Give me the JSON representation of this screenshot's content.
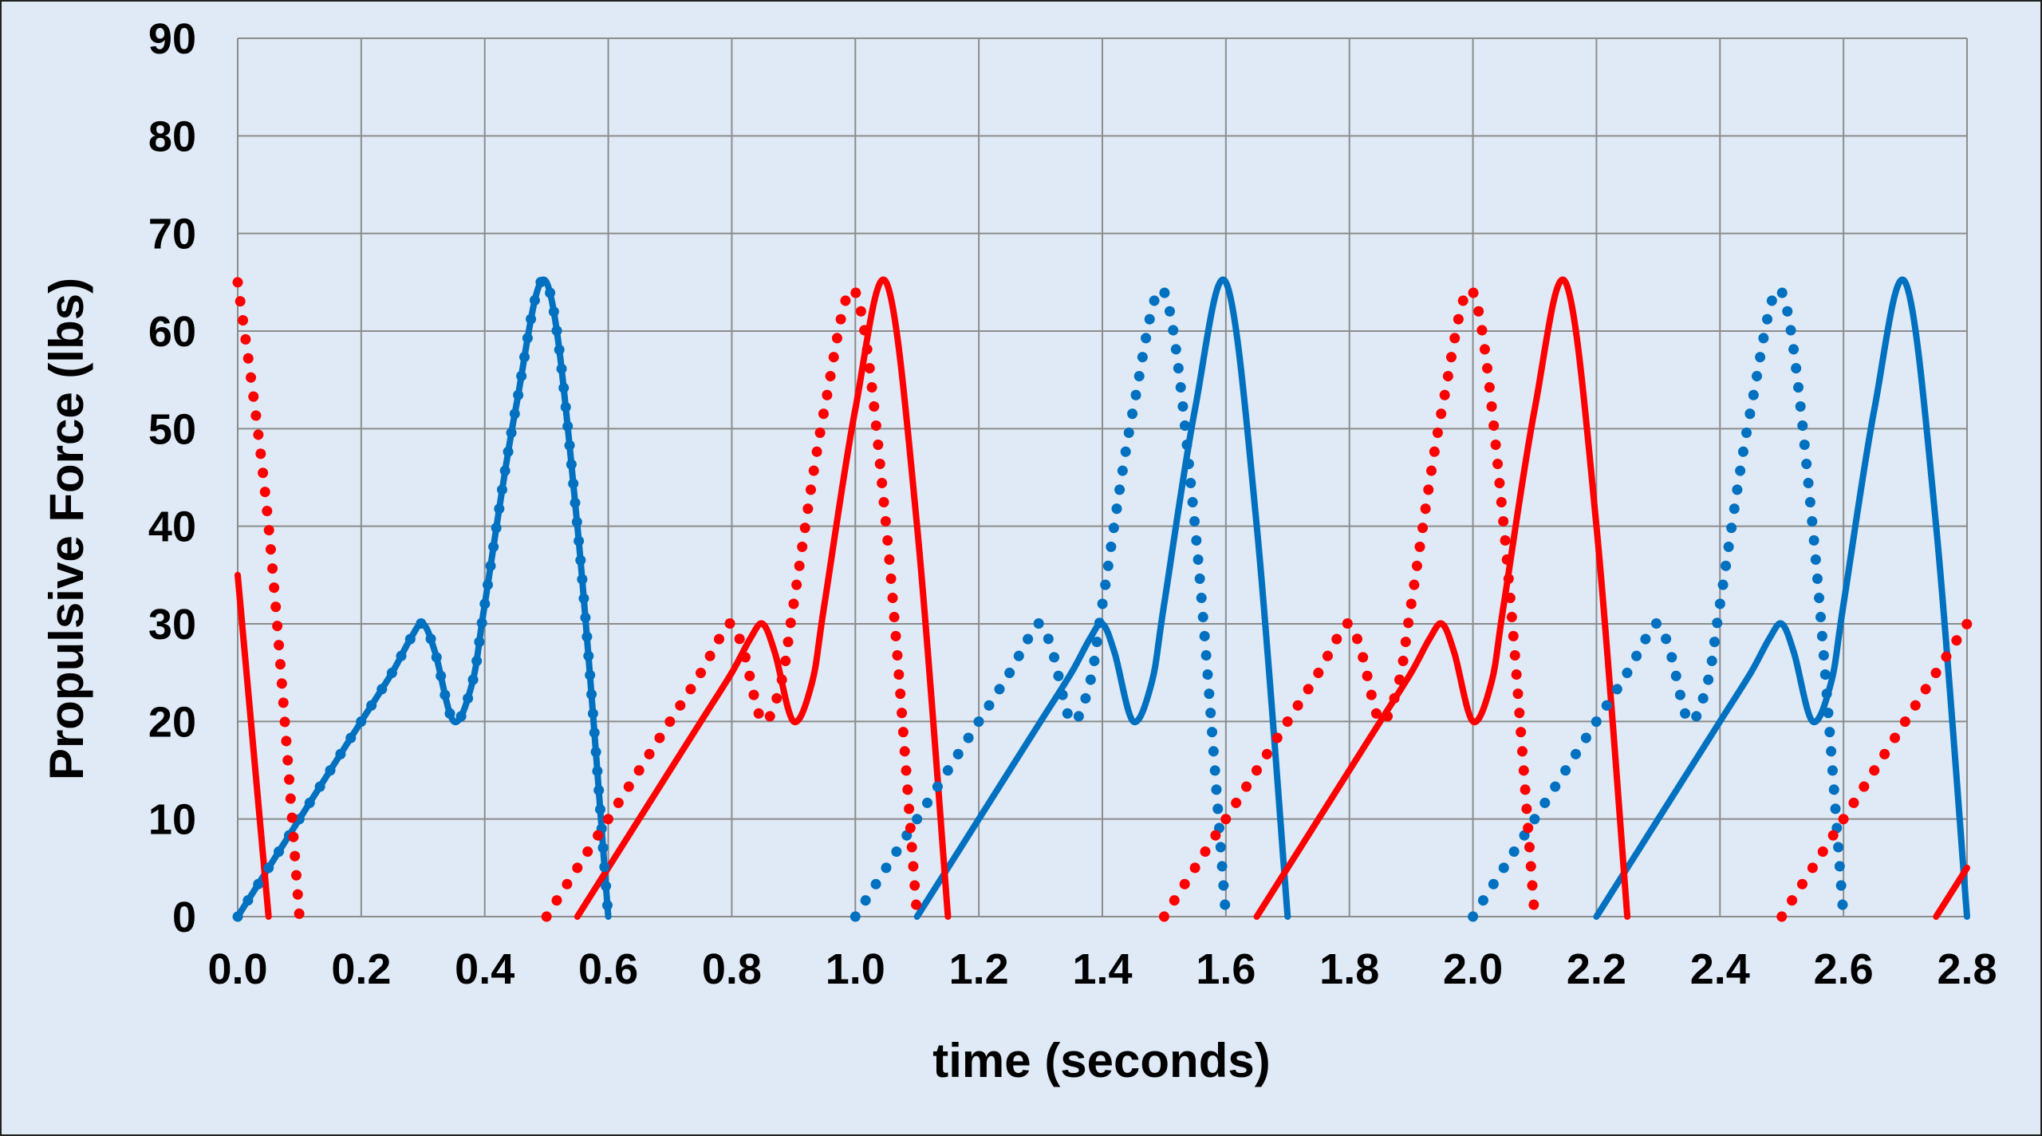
{
  "chart_data": {
    "type": "line",
    "title": "",
    "xlabel": "time (seconds)",
    "ylabel": "Propulsive Force (lbs)",
    "xlim": [
      0,
      2.8
    ],
    "ylim": [
      0,
      90
    ],
    "x_ticks": [
      "0.0",
      "0.2",
      "0.4",
      "0.6",
      "0.8",
      "1.0",
      "1.2",
      "1.4",
      "1.6",
      "1.8",
      "2.0",
      "2.2",
      "2.4",
      "2.6",
      "2.8"
    ],
    "y_ticks": [
      "0",
      "10",
      "20",
      "30",
      "40",
      "50",
      "60",
      "70",
      "80",
      "90"
    ],
    "grid": true,
    "legend": "none",
    "colors": {
      "blue": "#0070c0",
      "red": "#ff0000",
      "grid": "#8c8c8c",
      "background": "#dfeaf6"
    },
    "series": [
      {
        "color": "blue",
        "style": "solid",
        "x": [
          0,
          0.05,
          0.1,
          0.15,
          0.2,
          0.25,
          0.28,
          0.3,
          0.32,
          0.35,
          0.38,
          0.4,
          0.45,
          0.5,
          0.55,
          0.6
        ],
        "y": [
          0,
          5,
          10,
          15,
          20,
          25,
          28.5,
          30,
          27,
          20,
          24,
          32,
          52,
          65,
          40,
          0
        ]
      },
      {
        "color": "blue",
        "style": "solid",
        "x": [
          1.1,
          1.15,
          1.2,
          1.25,
          1.3,
          1.35,
          1.38,
          1.4,
          1.42,
          1.45,
          1.48,
          1.5,
          1.55,
          1.6,
          1.65,
          1.7
        ],
        "y": [
          0,
          5,
          10,
          15,
          20,
          25,
          28.5,
          30,
          27,
          20,
          24,
          32,
          52,
          65,
          40,
          0
        ]
      },
      {
        "color": "blue",
        "style": "solid",
        "x": [
          2.2,
          2.25,
          2.3,
          2.35,
          2.4,
          2.45,
          2.48,
          2.5,
          2.52,
          2.55,
          2.58,
          2.6,
          2.65,
          2.7,
          2.75,
          2.8
        ],
        "y": [
          0,
          5,
          10,
          15,
          20,
          25,
          28.5,
          30,
          27,
          20,
          24,
          32,
          52,
          65,
          40,
          0
        ]
      },
      {
        "color": "red",
        "style": "solid",
        "x": [
          0,
          0.05
        ],
        "y": [
          35,
          0
        ]
      },
      {
        "color": "red",
        "style": "solid",
        "x": [
          0.55,
          0.6,
          0.65,
          0.7,
          0.75,
          0.8,
          0.83,
          0.85,
          0.87,
          0.9,
          0.93,
          0.95,
          1.0,
          1.05,
          1.1,
          1.15
        ],
        "y": [
          0,
          5,
          10,
          15,
          20,
          25,
          28.5,
          30,
          27,
          20,
          24,
          32,
          52,
          65,
          40,
          0
        ]
      },
      {
        "color": "red",
        "style": "solid",
        "x": [
          1.65,
          1.7,
          1.75,
          1.8,
          1.85,
          1.9,
          1.93,
          1.95,
          1.97,
          2.0,
          2.03,
          2.05,
          2.1,
          2.15,
          2.2,
          2.25
        ],
        "y": [
          0,
          5,
          10,
          15,
          20,
          25,
          28.5,
          30,
          27,
          20,
          24,
          32,
          52,
          65,
          40,
          0
        ]
      },
      {
        "color": "red",
        "style": "solid",
        "x": [
          2.75,
          2.8
        ],
        "y": [
          0,
          5
        ]
      },
      {
        "color": "blue",
        "style": "dotted",
        "x": [
          0,
          0.05,
          0.1,
          0.15,
          0.2,
          0.25,
          0.28,
          0.3,
          0.32,
          0.35,
          0.38,
          0.4,
          0.45,
          0.5,
          0.55,
          0.6
        ],
        "y": [
          0,
          5,
          10,
          15,
          20,
          25,
          28.5,
          30,
          27,
          20,
          24,
          32,
          52,
          65,
          40,
          0
        ]
      },
      {
        "color": "blue",
        "style": "dotted",
        "x": [
          1.0,
          1.05,
          1.1,
          1.15,
          1.2,
          1.25,
          1.28,
          1.3,
          1.32,
          1.35,
          1.38,
          1.4,
          1.45,
          1.5,
          1.55,
          1.6
        ],
        "y": [
          0,
          5,
          10,
          15,
          20,
          25,
          28.5,
          30,
          27,
          20,
          24,
          32,
          52,
          64,
          40,
          0
        ]
      },
      {
        "color": "blue",
        "style": "dotted",
        "x": [
          2.0,
          2.05,
          2.1,
          2.15,
          2.2,
          2.25,
          2.28,
          2.3,
          2.32,
          2.35,
          2.38,
          2.4,
          2.45,
          2.5,
          2.55,
          2.6
        ],
        "y": [
          0,
          5,
          10,
          15,
          20,
          25,
          28.5,
          30,
          27,
          20,
          24,
          32,
          52,
          64,
          40,
          0
        ]
      },
      {
        "color": "red",
        "style": "dotted",
        "x": [
          0,
          0.05,
          0.1
        ],
        "y": [
          65,
          40,
          0
        ]
      },
      {
        "color": "red",
        "style": "dotted",
        "x": [
          0.5,
          0.55,
          0.6,
          0.65,
          0.7,
          0.75,
          0.78,
          0.8,
          0.82,
          0.85,
          0.88,
          0.9,
          0.95,
          1.0,
          1.05,
          1.1
        ],
        "y": [
          0,
          5,
          10,
          15,
          20,
          25,
          28.5,
          30,
          27,
          20,
          24,
          32,
          52,
          64,
          40,
          0
        ]
      },
      {
        "color": "red",
        "style": "dotted",
        "x": [
          1.5,
          1.55,
          1.6,
          1.65,
          1.7,
          1.75,
          1.78,
          1.8,
          1.82,
          1.85,
          1.88,
          1.9,
          1.95,
          2.0,
          2.05,
          2.1
        ],
        "y": [
          0,
          5,
          10,
          15,
          20,
          25,
          28.5,
          30,
          27,
          20,
          24,
          32,
          52,
          64,
          40,
          0
        ]
      },
      {
        "color": "red",
        "style": "dotted",
        "x": [
          2.5,
          2.55,
          2.6,
          2.65,
          2.7,
          2.75,
          2.8
        ],
        "y": [
          0,
          5,
          10,
          15,
          20,
          25,
          30
        ]
      }
    ]
  }
}
